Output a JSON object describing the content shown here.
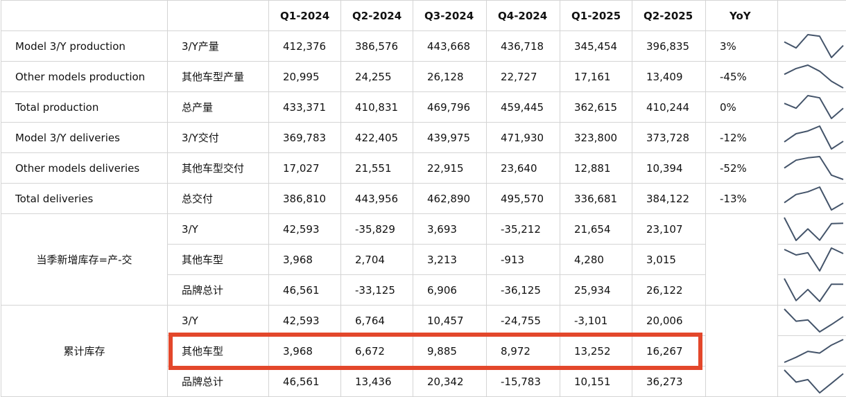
{
  "table": {
    "columns": [
      "Q1-2024",
      "Q2-2024",
      "Q3-2024",
      "Q4-2024",
      "Q1-2025",
      "Q2-2025",
      "YoY"
    ],
    "rows": [
      {
        "en": "Model 3/Y production",
        "cn": "3/Y产量",
        "values": [
          "412,376",
          "386,576",
          "443,668",
          "436,718",
          "345,454",
          "396,835"
        ],
        "yoy": "3%"
      },
      {
        "en": "Other models production",
        "cn": "其他车型产量",
        "values": [
          "20,995",
          "24,255",
          "26,128",
          "22,727",
          "17,161",
          "13,409"
        ],
        "yoy": "-45%"
      },
      {
        "en": "Total production",
        "cn": "总产量",
        "values": [
          "433,371",
          "410,831",
          "469,796",
          "459,445",
          "362,615",
          "410,244"
        ],
        "yoy": "0%"
      },
      {
        "en": "Model 3/Y deliveries",
        "cn": "3/Y交付",
        "values": [
          "369,783",
          "422,405",
          "439,975",
          "471,930",
          "323,800",
          "373,728"
        ],
        "yoy": "-12%"
      },
      {
        "en": "Other models deliveries",
        "cn": "其他车型交付",
        "values": [
          "17,027",
          "21,551",
          "22,915",
          "23,640",
          "12,881",
          "10,394"
        ],
        "yoy": "-52%"
      },
      {
        "en": "Total deliveries",
        "cn": "总交付",
        "values": [
          "386,810",
          "443,956",
          "462,890",
          "495,570",
          "336,681",
          "384,122"
        ],
        "yoy": "-13%"
      }
    ],
    "groups": [
      {
        "label": "当季新增库存=产-交",
        "rows": [
          {
            "cn": "3/Y",
            "values": [
              "42,593",
              "-35,829",
              "3,693",
              "-35,212",
              "21,654",
              "23,107"
            ]
          },
          {
            "cn": "其他车型",
            "values": [
              "3,968",
              "2,704",
              "3,213",
              "-913",
              "4,280",
              "3,015"
            ]
          },
          {
            "cn": "品牌总计",
            "values": [
              "46,561",
              "-33,125",
              "6,906",
              "-36,125",
              "25,934",
              "26,122"
            ]
          }
        ]
      },
      {
        "label": "累计库存",
        "rows": [
          {
            "cn": "3/Y",
            "values": [
              "42,593",
              "6,764",
              "10,457",
              "-24,755",
              "-3,101",
              "20,006"
            ]
          },
          {
            "cn": "其他车型",
            "values": [
              "3,968",
              "6,672",
              "9,885",
              "8,972",
              "13,252",
              "16,267"
            ]
          },
          {
            "cn": "品牌总计",
            "values": [
              "46,561",
              "13,436",
              "20,342",
              "-15,783",
              "10,151",
              "36,273"
            ]
          }
        ]
      }
    ]
  },
  "chart_data": {
    "type": "table",
    "title": "",
    "categories": [
      "Q1-2024",
      "Q2-2024",
      "Q3-2024",
      "Q4-2024",
      "Q1-2025",
      "Q2-2025"
    ],
    "series": [
      {
        "name": "Model 3/Y production",
        "values": [
          412376,
          386576,
          443668,
          436718,
          345454,
          396835
        ]
      },
      {
        "name": "Other models production",
        "values": [
          20995,
          24255,
          26128,
          22727,
          17161,
          13409
        ]
      },
      {
        "name": "Total production",
        "values": [
          433371,
          410831,
          469796,
          459445,
          362615,
          410244
        ]
      },
      {
        "name": "Model 3/Y deliveries",
        "values": [
          369783,
          422405,
          439975,
          471930,
          323800,
          373728
        ]
      },
      {
        "name": "Other models deliveries",
        "values": [
          17027,
          21551,
          22915,
          23640,
          12881,
          10394
        ]
      },
      {
        "name": "Total deliveries",
        "values": [
          386810,
          443956,
          462890,
          495570,
          336681,
          384122
        ]
      },
      {
        "name": "3/Y",
        "values": [
          42593,
          -35829,
          3693,
          -35212,
          21654,
          23107
        ]
      },
      {
        "name": "其他车型",
        "values": [
          3968,
          2704,
          3213,
          -913,
          4280,
          3015
        ]
      },
      {
        "name": "品牌总计",
        "values": [
          46561,
          -33125,
          6906,
          -36125,
          25934,
          26122
        ]
      },
      {
        "name": "3/Y",
        "values": [
          42593,
          6764,
          10457,
          -24755,
          -3101,
          20006
        ]
      },
      {
        "name": "其他车型",
        "values": [
          3968,
          6672,
          9885,
          8972,
          13252,
          16267
        ]
      },
      {
        "name": "品牌总计",
        "values": [
          46561,
          13436,
          20342,
          -15783,
          10151,
          36273
        ]
      }
    ],
    "sparkline_color": "#44546a",
    "highlight_color": "#e3472b"
  }
}
